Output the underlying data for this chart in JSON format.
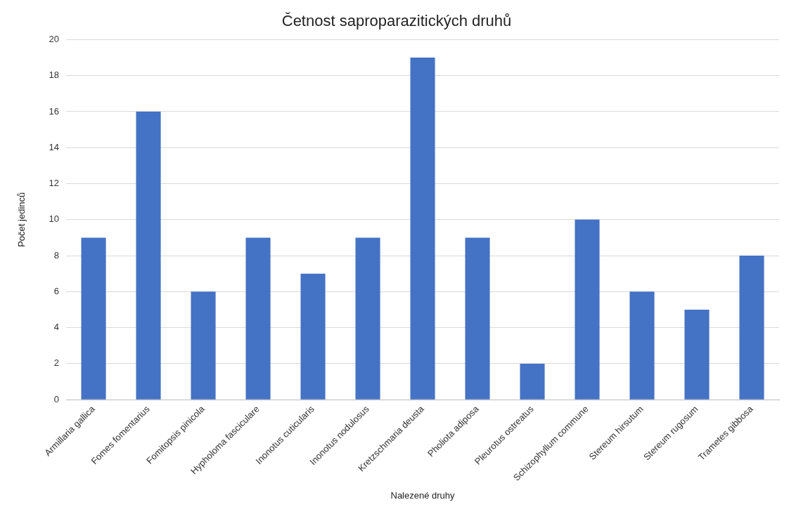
{
  "chart_data": {
    "type": "bar",
    "title": "Četnost saproparazitických druhů",
    "xlabel": "Nalezené druhy",
    "ylabel": "Počet jedinců",
    "categories": [
      "Armillaria gallica",
      "Fomes fomentarius",
      "Fomitopsis pinicola",
      "Hypholoma fasciculare",
      "Inonotus cuticularis",
      "Inonotus nodulosus",
      "Kretzschmaria deusta",
      "Pholiota adiposa",
      "Pleurotus ostreatus",
      "Schizophyllum commune",
      "Stereum hirsutum",
      "Stereum rugosum",
      "Trametes gibbosa"
    ],
    "values": [
      9,
      16,
      6,
      9,
      7,
      9,
      19,
      9,
      2,
      10,
      6,
      5,
      8
    ],
    "color": "#4472c4",
    "ylim": [
      0,
      20
    ],
    "yticks": [
      0,
      2,
      4,
      6,
      8,
      10,
      12,
      14,
      16,
      18,
      20
    ],
    "grid": "y"
  }
}
